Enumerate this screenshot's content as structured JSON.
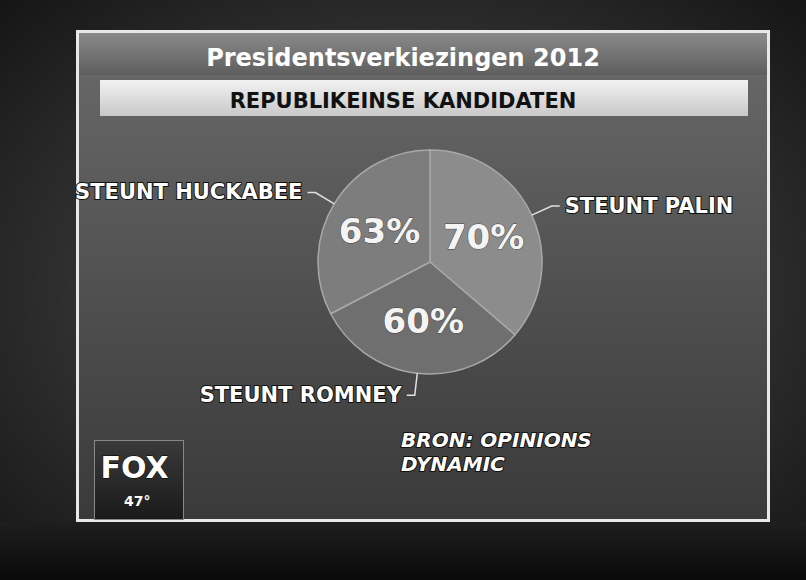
{
  "chart_data": {
    "type": "pie",
    "title": "Presidentsverkiezingen 2012",
    "subtitle": "REPUBLIKEINSE KANDIDATEN",
    "categories": [
      "STEUNT PALIN",
      "STEUNT ROMNEY",
      "STEUNT HUCKABEE"
    ],
    "values": [
      70,
      60,
      63
    ],
    "value_labels": [
      "70%",
      "60%",
      "63%"
    ],
    "colors": [
      "#8c8c8c",
      "#6f6f6f",
      "#7d7d7d"
    ],
    "data_labels": true,
    "annotations": [
      "BRON: OPINIONS DYNAMIC",
      "FOX",
      "47°"
    ]
  }
}
